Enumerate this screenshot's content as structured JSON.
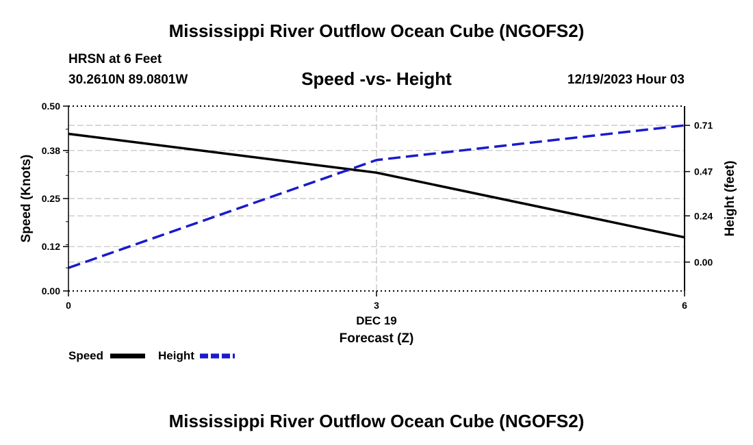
{
  "page": {
    "top_title": "Mississippi River Outflow Ocean Cube (NGOFS2)",
    "bottom_title": "Mississippi River Outflow Ocean Cube (NGOFS2)"
  },
  "header": {
    "station": "HRSN at 6 Feet",
    "coords": "30.2610N  89.0801W",
    "subtitle": "Speed -vs- Height",
    "datetime": "12/19/2023 Hour 03"
  },
  "legend": {
    "speed_label": "Speed",
    "height_label": "Height"
  },
  "colors": {
    "speed": "#000000",
    "height": "#1a1acc",
    "grid": "#c0c0c0"
  },
  "chart_data": {
    "type": "line",
    "title": "Speed -vs- Height",
    "xlabel": "Forecast (Z)",
    "xlabel_date": "DEC 19",
    "ylabel_left": "Speed (Knots)",
    "ylabel_right": "Height (feet)",
    "x": [
      0,
      3,
      6
    ],
    "x_tick_labels": [
      "0",
      "3",
      "6"
    ],
    "xlim": [
      0,
      6
    ],
    "ylim_left": [
      0,
      0.5
    ],
    "y_left_ticks": [
      0.0,
      0.12,
      0.25,
      0.38,
      0.5
    ],
    "y_left_tick_labels": [
      "0.00",
      "0.12",
      "0.25",
      "0.38",
      "0.50"
    ],
    "ylim_right": [
      -0.15,
      0.81
    ],
    "y_right_ticks": [
      0.0,
      0.24,
      0.47,
      0.71
    ],
    "y_right_tick_labels": [
      "0.00",
      "0.24",
      "0.47",
      "0.71"
    ],
    "grid": true,
    "series": [
      {
        "name": "Speed",
        "axis": "left",
        "style": "solid",
        "values": [
          0.425,
          0.32,
          0.145
        ]
      },
      {
        "name": "Height",
        "axis": "right",
        "style": "dashed",
        "values": [
          -0.03,
          0.53,
          0.71
        ]
      }
    ]
  }
}
